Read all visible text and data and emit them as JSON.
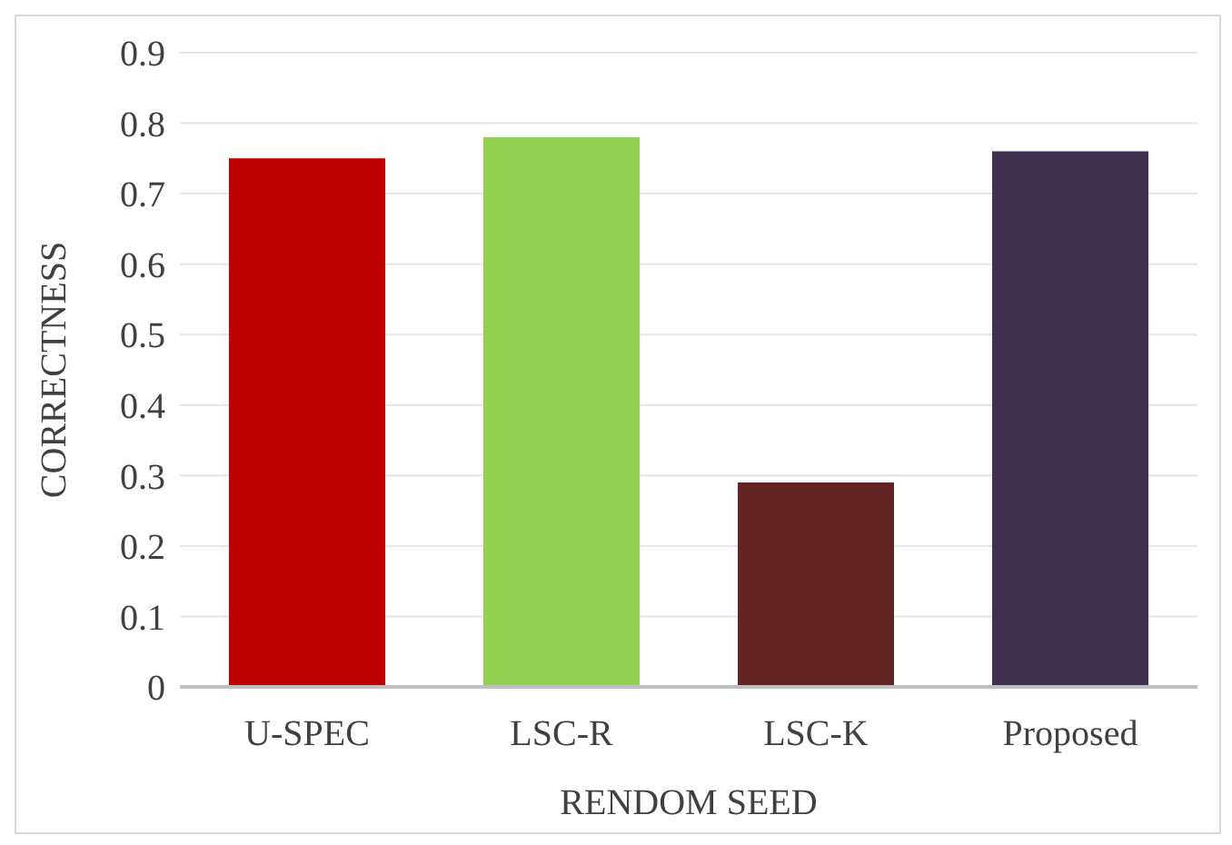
{
  "chart_data": {
    "type": "bar",
    "xlabel": "RENDOM SEED",
    "ylabel": "CORRECTNESS",
    "categories": [
      "U-SPEC",
      "LSC-R",
      "LSC-K",
      "Proposed"
    ],
    "values": [
      0.75,
      0.78,
      0.29,
      0.76
    ],
    "colors": [
      "#c00000",
      "#92d050",
      "#632523",
      "#403151"
    ],
    "ylim": [
      0,
      0.9
    ],
    "yticks": [
      0,
      0.1,
      0.2,
      0.3,
      0.4,
      0.5,
      0.6,
      0.7,
      0.8,
      0.9
    ],
    "grid": "y"
  }
}
